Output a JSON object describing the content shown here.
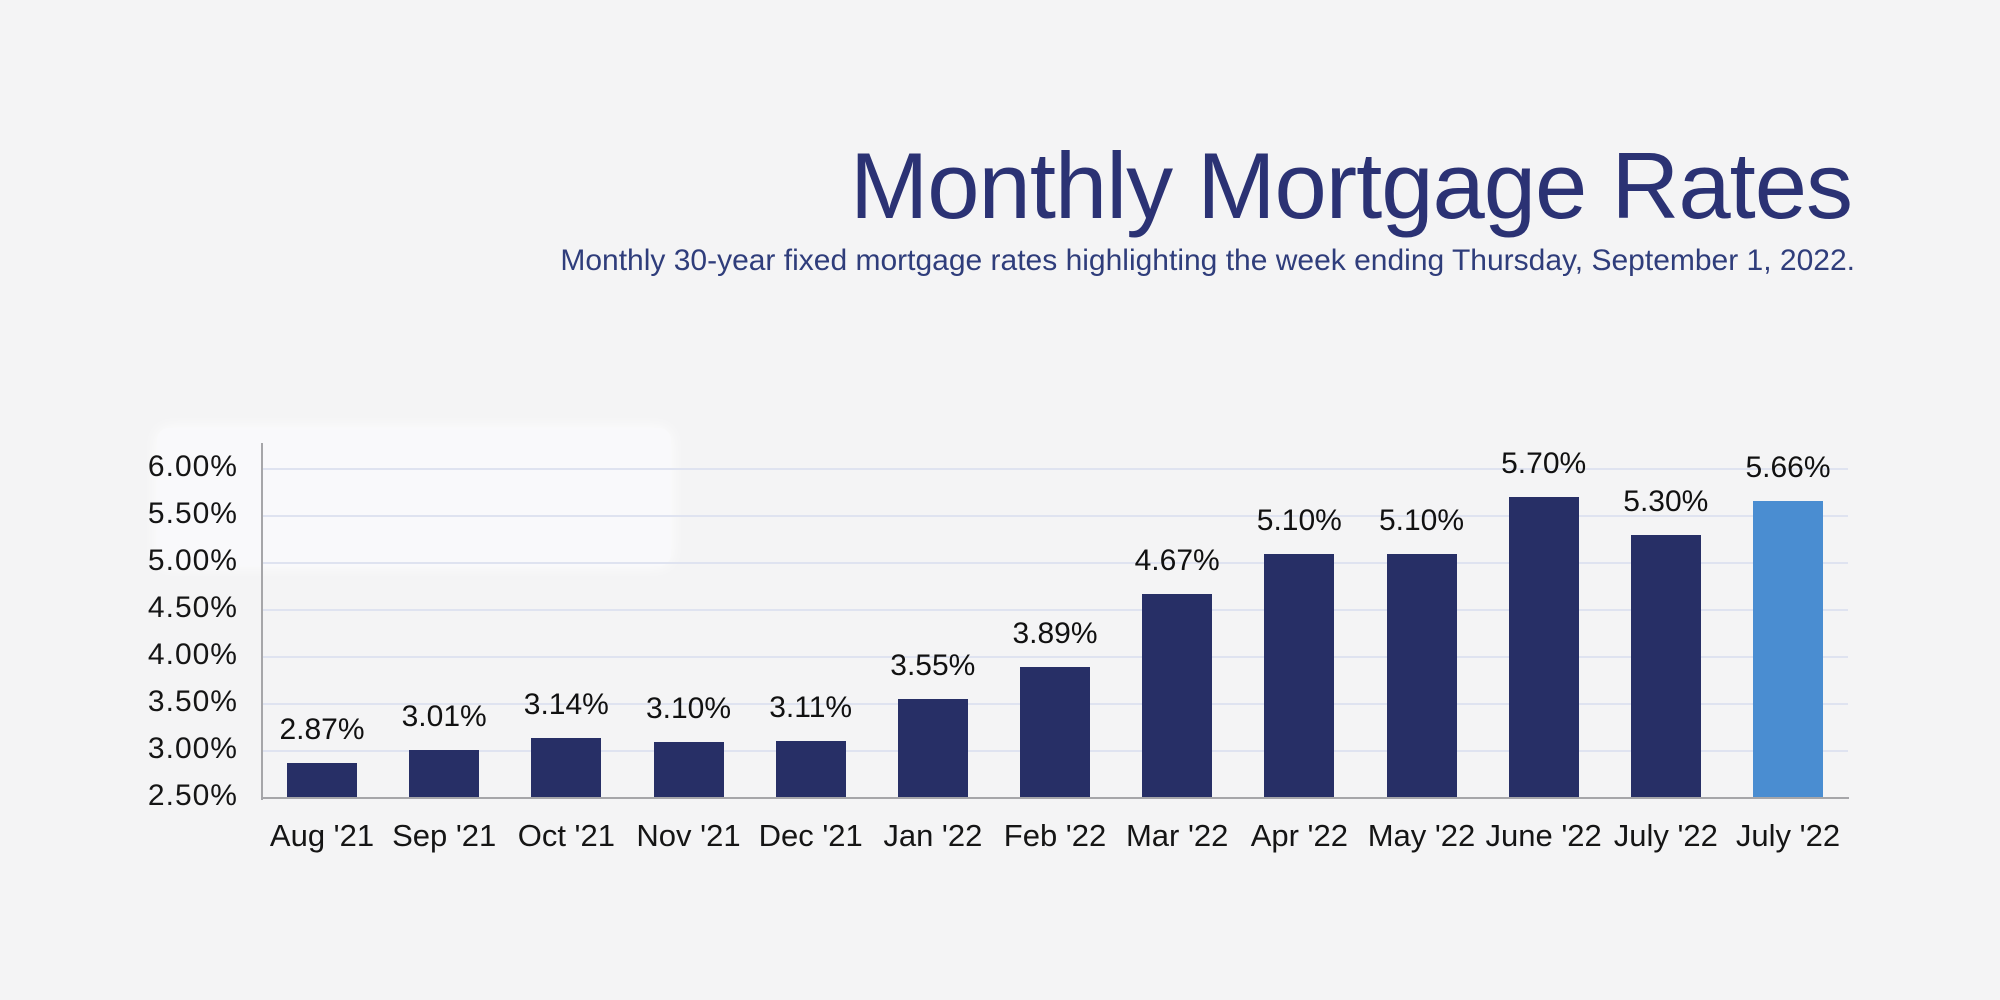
{
  "page": {
    "background_color": "#f4f4f5"
  },
  "header": {
    "title": "Monthly Mortgage Rates",
    "subtitle": "Monthly 30-year fixed mortgage rates highlighting the week ending Thursday, September 1, 2022.",
    "title_color": "#2b3274",
    "subtitle_color": "#2f3d7b"
  },
  "chart_data": {
    "type": "bar",
    "title": "Monthly Mortgage Rates",
    "subtitle": "Monthly 30-year fixed mortgage rates highlighting the week ending Thursday, September 1, 2022.",
    "categories": [
      "Aug '21",
      "Sep '21",
      "Oct '21",
      "Nov '21",
      "Dec '21",
      "Jan '22",
      "Feb '22",
      "Mar '22",
      "Apr '22",
      "May '22",
      "June '22",
      "July '22",
      "July '22"
    ],
    "values": [
      2.87,
      3.01,
      3.14,
      3.1,
      3.11,
      3.55,
      3.89,
      4.67,
      5.1,
      5.1,
      5.7,
      5.3,
      5.66
    ],
    "value_labels": [
      "2.87%",
      "3.01%",
      "3.14%",
      "3.10%",
      "3.11%",
      "3.55%",
      "3.89%",
      "4.67%",
      "5.10%",
      "5.10%",
      "5.70%",
      "5.30%",
      "5.66%"
    ],
    "highlight_index": 12,
    "xlabel": "",
    "ylabel": "",
    "ylim": [
      2.5,
      6.28
    ],
    "grid": true,
    "legend": false,
    "y_axis": {
      "min": 2.5,
      "tick_step": 0.5,
      "ticks": [
        {
          "value": 2.5,
          "label": "2.50%"
        },
        {
          "value": 3.0,
          "label": "3.00%"
        },
        {
          "value": 3.5,
          "label": "3.50%"
        },
        {
          "value": 4.0,
          "label": "4.00%"
        },
        {
          "value": 4.5,
          "label": "4.50%"
        },
        {
          "value": 5.0,
          "label": "5.00%"
        },
        {
          "value": 5.5,
          "label": "5.50%"
        },
        {
          "value": 6.0,
          "label": "6.00%"
        }
      ]
    },
    "colors": {
      "bar": "#272f66",
      "highlight_bar": "#4a8dd1",
      "gridline": "#dfe3f0",
      "axis": "#a6a6a9",
      "tick_text": "#151515",
      "value_text": "#111111"
    }
  }
}
